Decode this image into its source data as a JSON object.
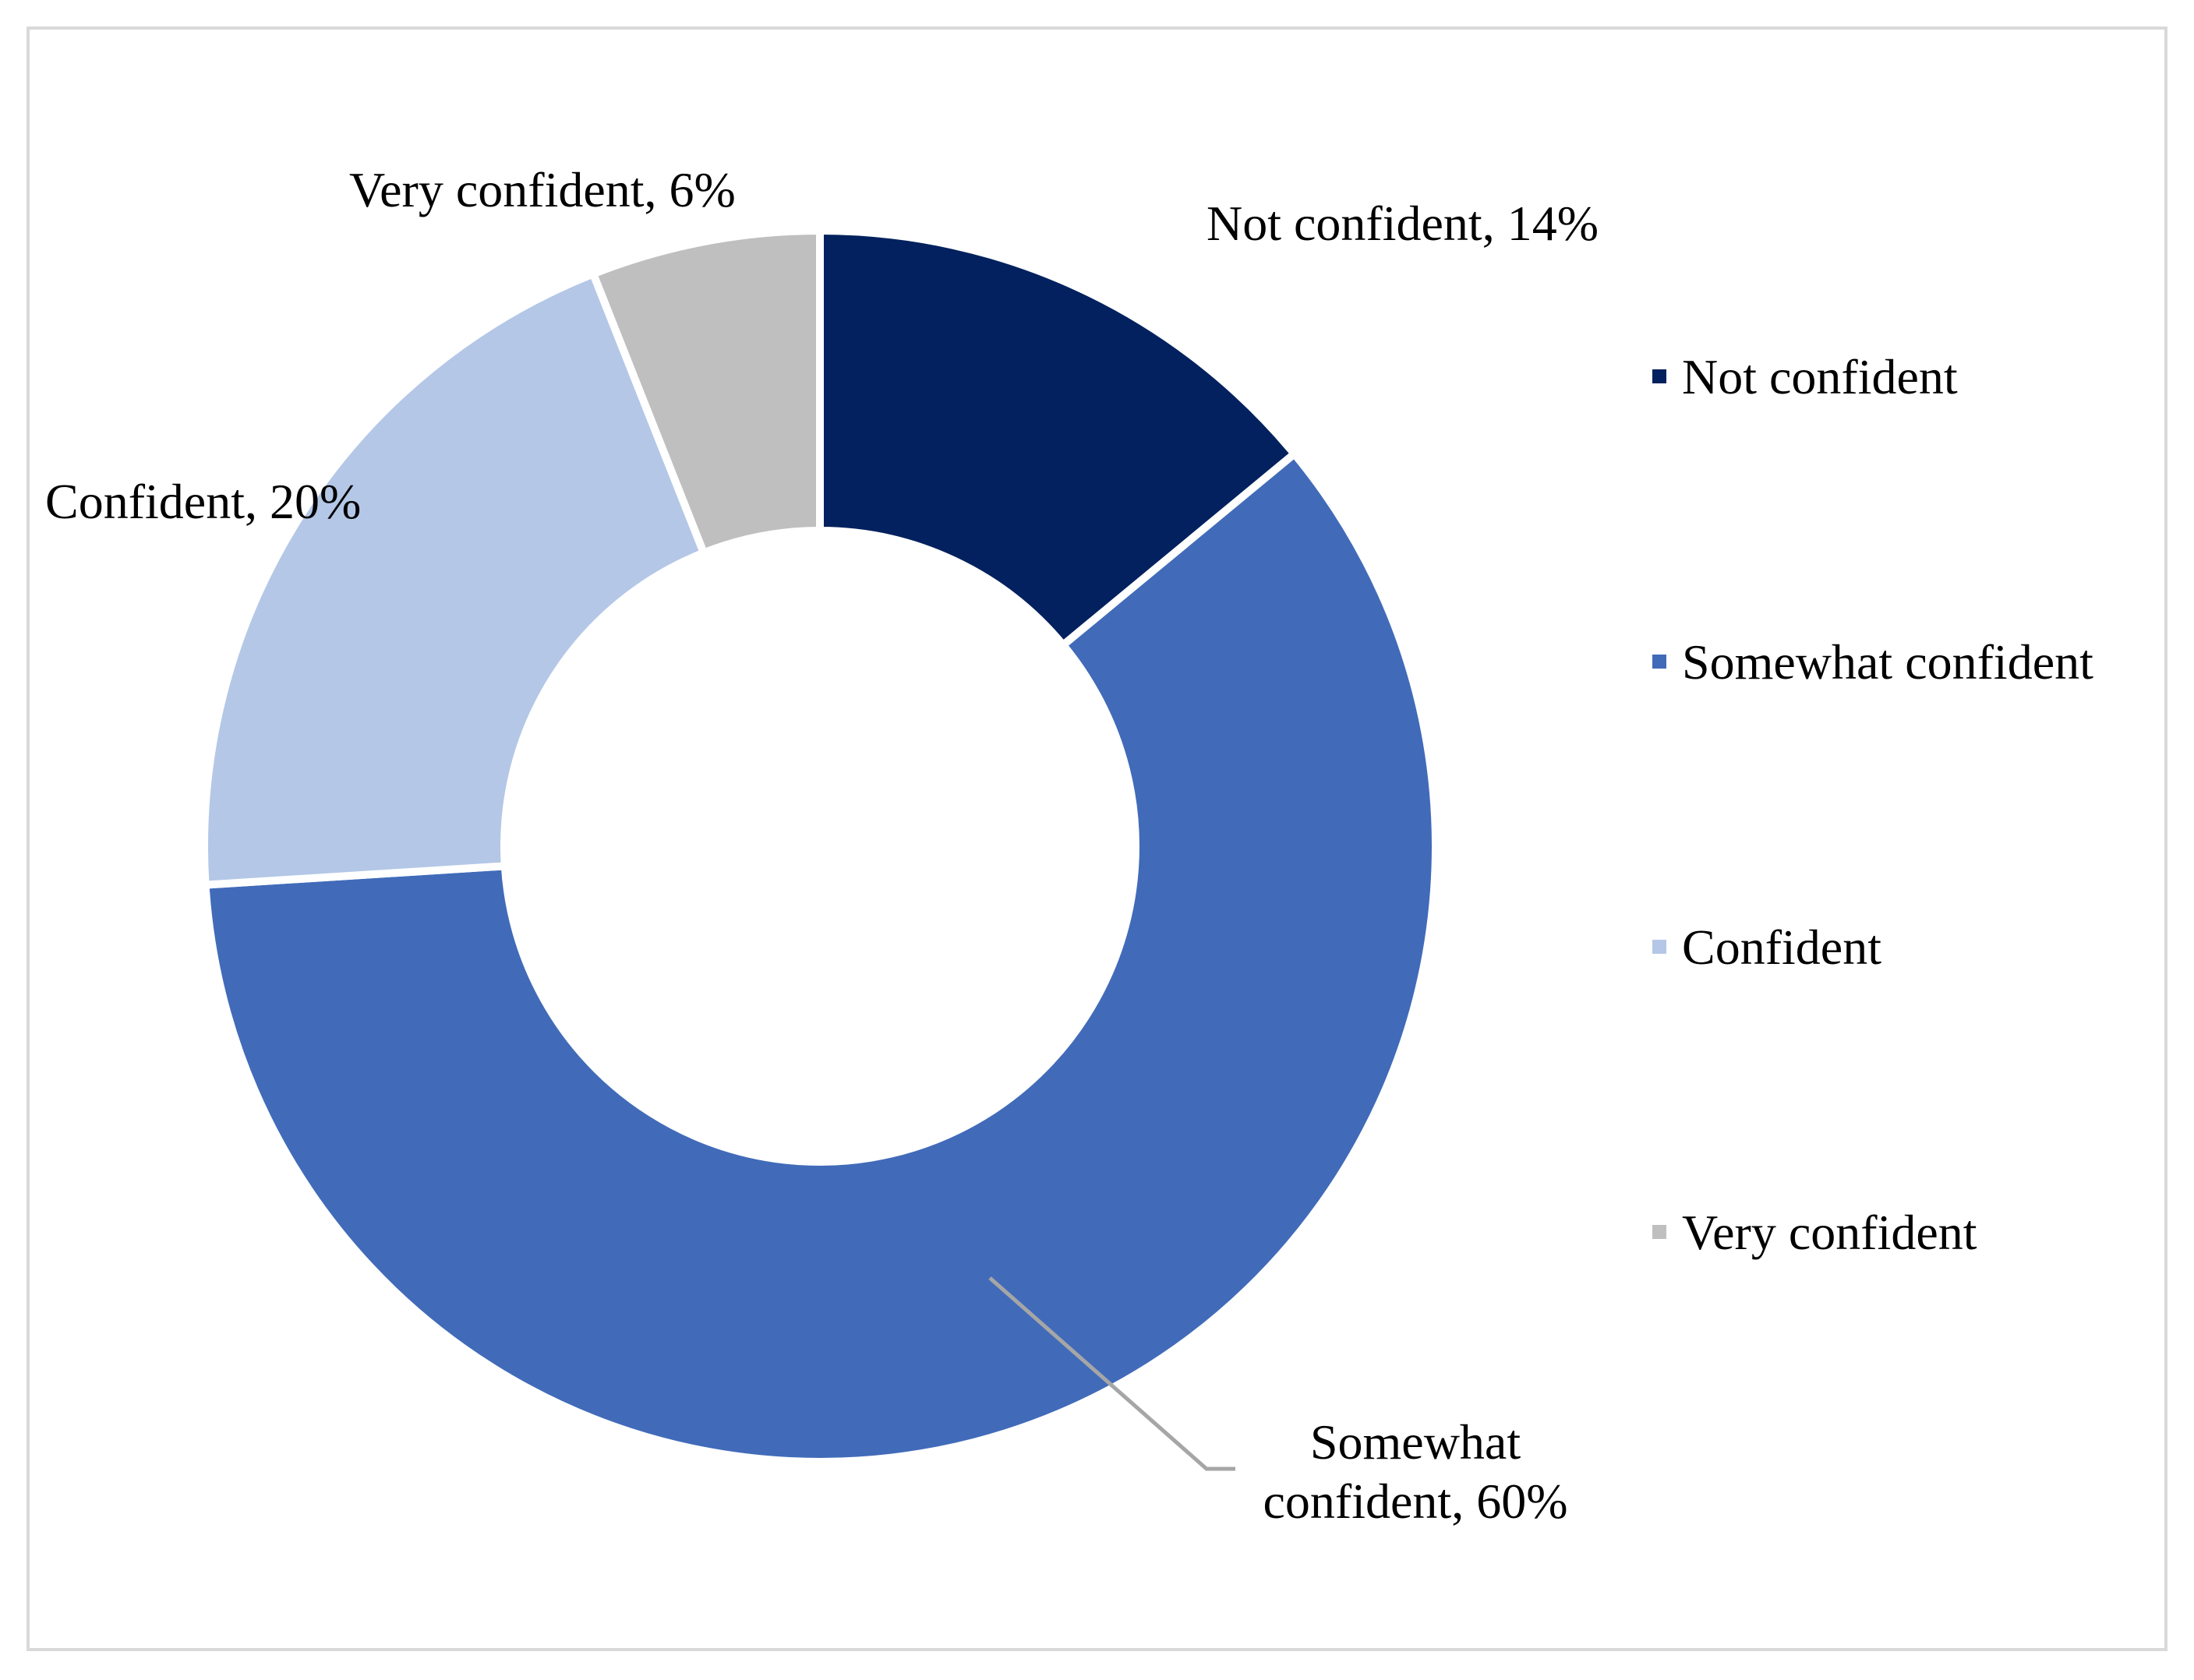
{
  "chart_data": {
    "type": "pie",
    "variant": "donut",
    "title": "",
    "categories": [
      "Not confident",
      "Somewhat confident",
      "Confident",
      "Very confident"
    ],
    "values": [
      14,
      60,
      20,
      6
    ],
    "unit": "%",
    "colors": [
      "#02215e",
      "#416bb9",
      "#b4c7e7",
      "#bfbfbf"
    ],
    "data_labels": [
      "Not confident, 14%",
      "Somewhat confident, 60%",
      "Confident, 20%",
      "Very confident, 6%"
    ],
    "somewhat_label_lines": [
      "Somewhat",
      "confident, 60%"
    ],
    "legend": {
      "position": "right",
      "entries": [
        "Not confident",
        "Somewhat confident",
        "Confident",
        "Very confident"
      ]
    }
  }
}
